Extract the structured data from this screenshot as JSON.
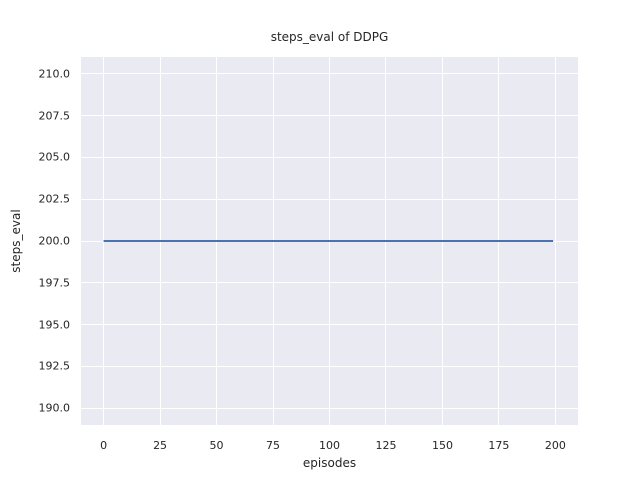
{
  "chart_data": {
    "type": "line",
    "title": "steps_eval of DDPG",
    "xlabel": "episodes",
    "ylabel": "steps_eval",
    "xlim": [
      -10,
      210
    ],
    "ylim": [
      189,
      211
    ],
    "xticks": [
      0,
      25,
      50,
      75,
      100,
      125,
      150,
      175,
      200
    ],
    "xtick_labels": [
      "0",
      "25",
      "50",
      "75",
      "100",
      "125",
      "150",
      "175",
      "200"
    ],
    "yticks": [
      190.0,
      192.5,
      195.0,
      197.5,
      200.0,
      202.5,
      205.0,
      207.5,
      210.0
    ],
    "ytick_labels": [
      "190.0",
      "192.5",
      "195.0",
      "197.5",
      "200.0",
      "202.5",
      "205.0",
      "207.5",
      "210.0"
    ],
    "grid": true,
    "legend_position": "none",
    "series": [
      {
        "name": "steps_eval",
        "x": [
          0,
          199
        ],
        "y": [
          200,
          200
        ],
        "note": "constant value 200 for every episode from 0 to 199"
      }
    ],
    "style": {
      "figure_bg": "#ffffff",
      "axes_bg": "#eaeaf2",
      "grid_color": "#ffffff",
      "text_color": "#262626",
      "line_color": "#4c72b0",
      "line_width": 2
    }
  }
}
